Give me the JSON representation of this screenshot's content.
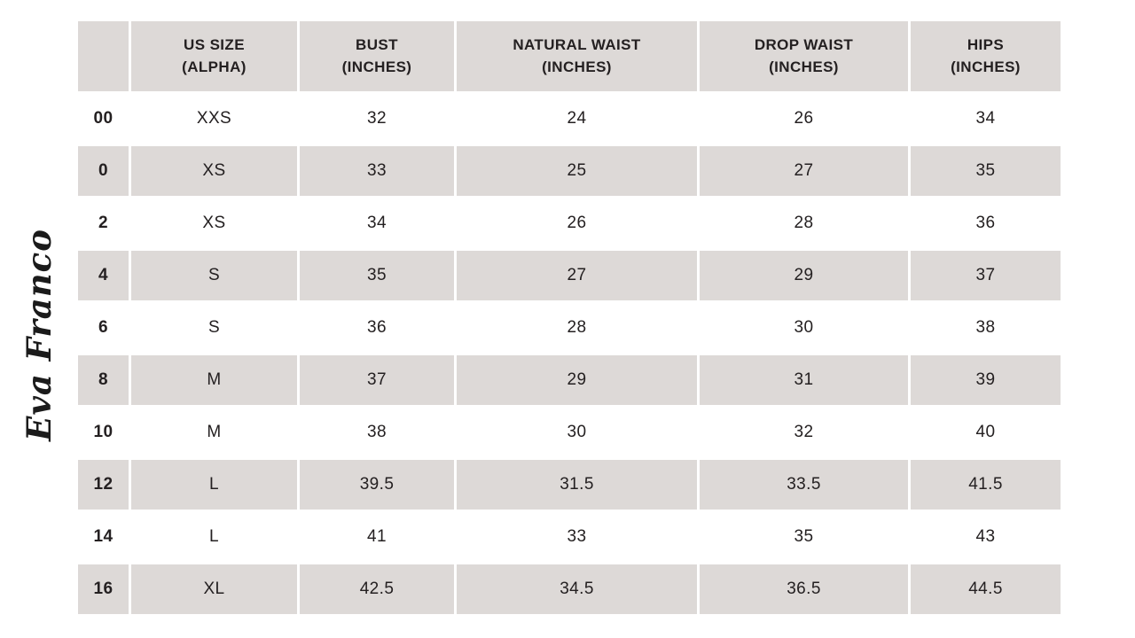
{
  "brand": {
    "logo_text": "Eva Franco"
  },
  "colors": {
    "page_bg": "#FFFFFF",
    "header_bg": "#DDD9D7",
    "row_alt_bg": "#DDD9D7",
    "row_bg": "#FFFFFF",
    "text": "#242021"
  },
  "chart_data": {
    "type": "table",
    "columns": [
      "",
      "US SIZE\n(ALPHA)",
      "BUST\n(INCHES)",
      "NATURAL WAIST\n(INCHES)",
      "DROP WAIST\n(INCHES)",
      "HIPS\n(INCHES)"
    ],
    "rows": [
      {
        "size": "00",
        "alpha": "XXS",
        "bust": "32",
        "natural_waist": "24",
        "drop_waist": "26",
        "hips": "34"
      },
      {
        "size": "0",
        "alpha": "XS",
        "bust": "33",
        "natural_waist": "25",
        "drop_waist": "27",
        "hips": "35"
      },
      {
        "size": "2",
        "alpha": "XS",
        "bust": "34",
        "natural_waist": "26",
        "drop_waist": "28",
        "hips": "36"
      },
      {
        "size": "4",
        "alpha": "S",
        "bust": "35",
        "natural_waist": "27",
        "drop_waist": "29",
        "hips": "37"
      },
      {
        "size": "6",
        "alpha": "S",
        "bust": "36",
        "natural_waist": "28",
        "drop_waist": "30",
        "hips": "38"
      },
      {
        "size": "8",
        "alpha": "M",
        "bust": "37",
        "natural_waist": "29",
        "drop_waist": "31",
        "hips": "39"
      },
      {
        "size": "10",
        "alpha": "M",
        "bust": "38",
        "natural_waist": "30",
        "drop_waist": "32",
        "hips": "40"
      },
      {
        "size": "12",
        "alpha": "L",
        "bust": "39.5",
        "natural_waist": "31.5",
        "drop_waist": "33.5",
        "hips": "41.5"
      },
      {
        "size": "14",
        "alpha": "L",
        "bust": "41",
        "natural_waist": "33",
        "drop_waist": "35",
        "hips": "43"
      },
      {
        "size": "16",
        "alpha": "XL",
        "bust": "42.5",
        "natural_waist": "34.5",
        "drop_waist": "36.5",
        "hips": "44.5"
      }
    ]
  }
}
